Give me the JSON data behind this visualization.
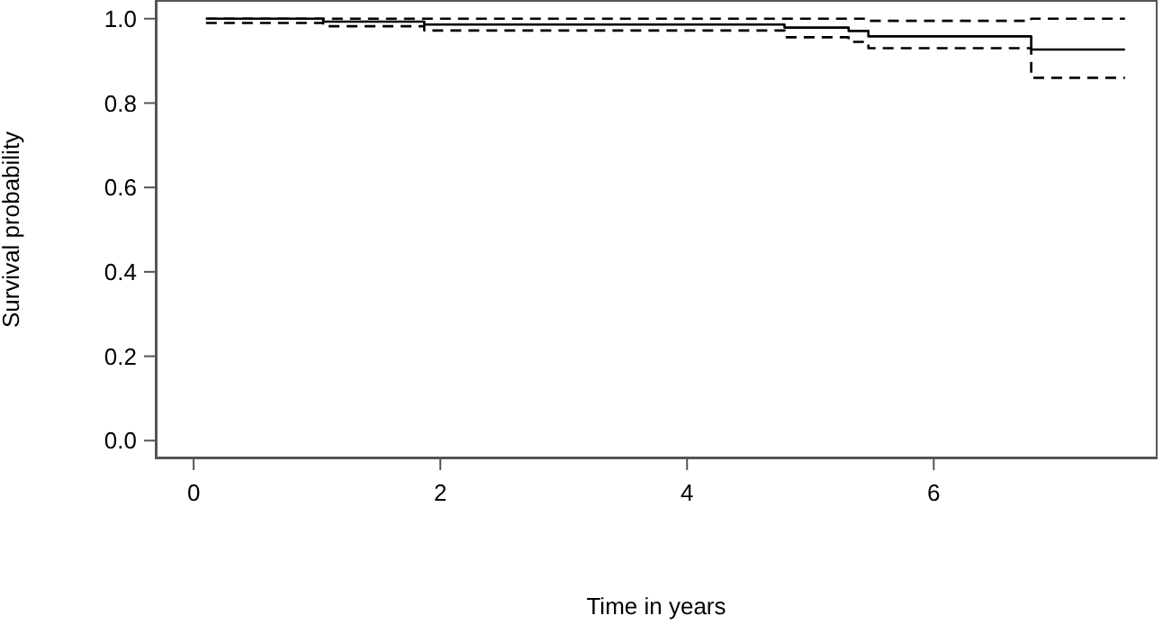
{
  "chart_data": {
    "type": "step",
    "xlabel": "Time in years",
    "ylabel": "Survival probability",
    "xlim": [
      -0.3,
      7.8
    ],
    "xticks": [
      0,
      2,
      4,
      6
    ],
    "ylim": [
      -0.04,
      1.04
    ],
    "yticks": [
      {
        "value": 0,
        "label": "0.0"
      },
      {
        "value": 0.2,
        "label": "0.2"
      },
      {
        "value": 0.4,
        "label": "0.4"
      },
      {
        "value": 0.6,
        "label": "0.6"
      },
      {
        "value": 0.8,
        "label": "0.8"
      },
      {
        "value": 1,
        "label": "1.0"
      }
    ],
    "grid": false,
    "marker": "none",
    "series": [
      {
        "color": "#000000",
        "line_style": "solid",
        "x": [
          0.1,
          1.05,
          1.87,
          4.79,
          5.31,
          5.47,
          6.79,
          7.55
        ],
        "values": [
          1.0,
          0.993,
          0.986,
          0.979,
          0.971,
          0.958,
          0.927,
          0.927
        ]
      },
      {
        "color": "#000000",
        "line_style": "dashed",
        "x": [
          0.1,
          5.47,
          6.79,
          7.55
        ],
        "values": [
          1.0,
          0.995,
          1.0,
          1.0
        ]
      },
      {
        "color": "#000000",
        "line_style": "dashed",
        "x": [
          0.1,
          1.05,
          1.87,
          4.79,
          5.31,
          5.47,
          6.79,
          7.55
        ],
        "values": [
          0.99,
          0.982,
          0.972,
          0.956,
          0.945,
          0.93,
          0.86,
          0.86
        ]
      }
    ]
  }
}
